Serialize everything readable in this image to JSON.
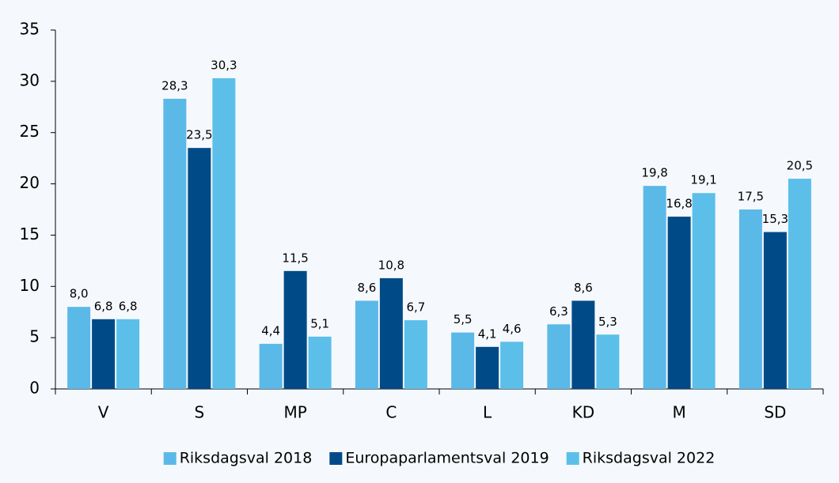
{
  "chart_data": {
    "type": "bar",
    "categories": [
      "V",
      "S",
      "MP",
      "C",
      "L",
      "KD",
      "M",
      "SD"
    ],
    "series": [
      {
        "name": "Riksdagsval 2018",
        "color": "#5bb9e8",
        "values": [
          8.0,
          28.3,
          4.4,
          8.6,
          5.5,
          6.3,
          19.8,
          17.5
        ],
        "value_labels": [
          "8,0",
          "28,3",
          "4,4",
          "8,6",
          "5,5",
          "6,3",
          "19,8",
          "17,5"
        ]
      },
      {
        "name": "Europaparlamentsval 2019",
        "color": "#004b87",
        "values": [
          6.8,
          23.5,
          11.5,
          10.8,
          4.1,
          8.6,
          16.8,
          15.3
        ],
        "value_labels": [
          "6,8",
          "23,5",
          "11,5",
          "10,8",
          "4,1",
          "8,6",
          "16,8",
          "15,3"
        ]
      },
      {
        "name": "Riksdagsval 2022",
        "color": "#5bbfea",
        "values": [
          6.8,
          30.3,
          5.1,
          6.7,
          4.6,
          5.3,
          19.1,
          20.5
        ],
        "value_labels": [
          "6,8",
          "30,3",
          "5,1",
          "6,7",
          "4,6",
          "5,3",
          "19,1",
          "20,5"
        ]
      }
    ],
    "ylim": [
      0,
      35
    ],
    "yticks": [
      0,
      5,
      10,
      15,
      20,
      25,
      30,
      35
    ],
    "grid": false,
    "legend": "bottom"
  }
}
